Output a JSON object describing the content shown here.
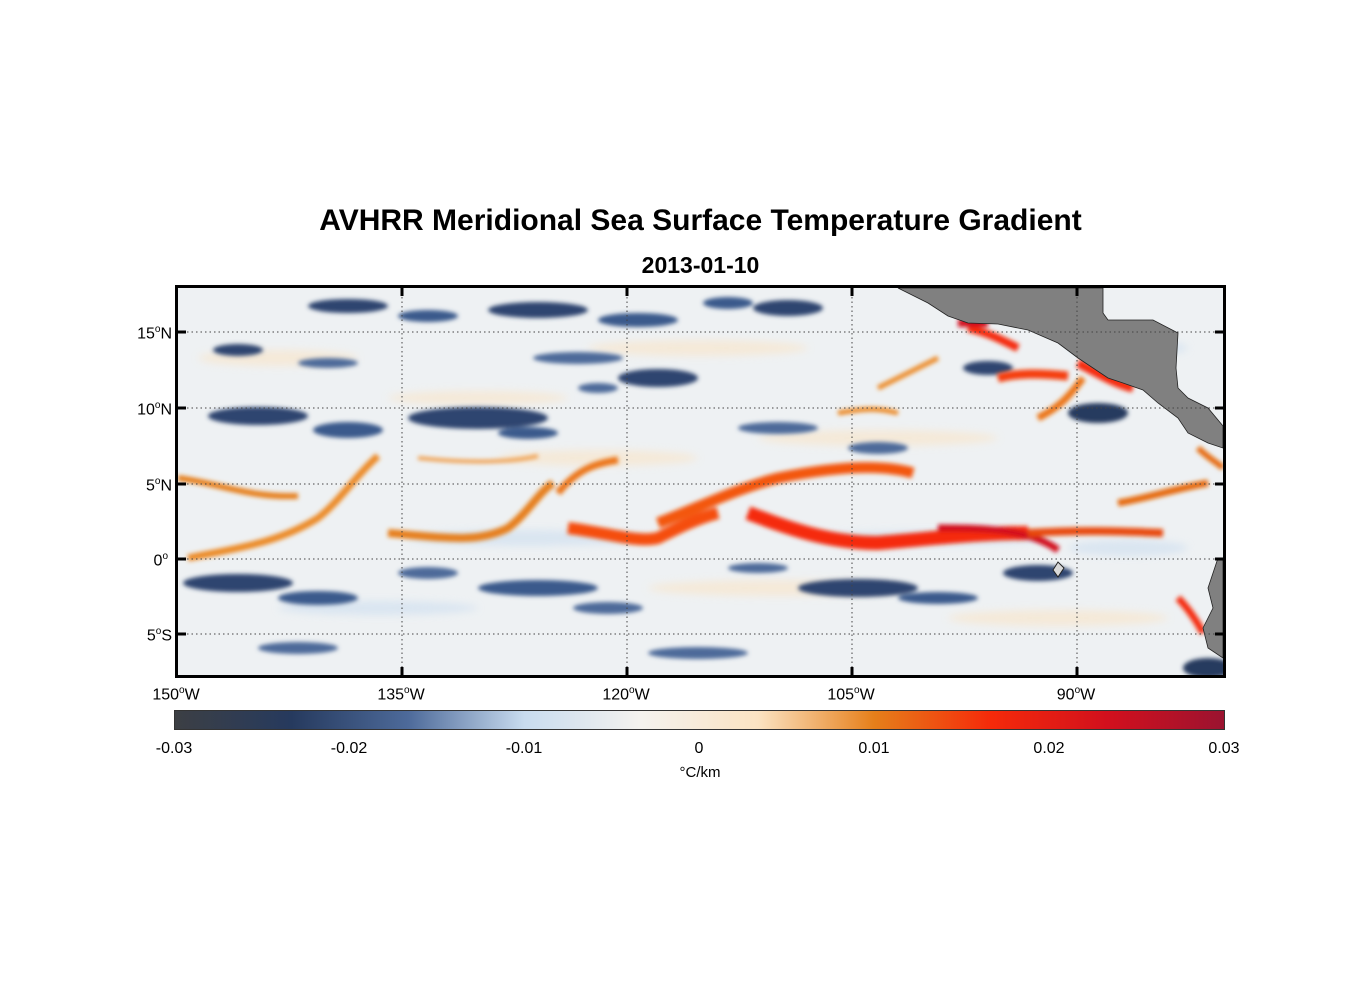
{
  "title": "AVHRR Meridional Sea Surface Temperature Gradient",
  "subtitle": "2013-01-10",
  "y_labels": [
    {
      "deg": "15",
      "hem": "N"
    },
    {
      "deg": "10",
      "hem": "N"
    },
    {
      "deg": "5",
      "hem": "N"
    },
    {
      "deg": "0",
      "hem": ""
    },
    {
      "deg": "5",
      "hem": "S"
    }
  ],
  "x_labels": [
    {
      "deg": "150",
      "hem": "W"
    },
    {
      "deg": "135",
      "hem": "W"
    },
    {
      "deg": "120",
      "hem": "W"
    },
    {
      "deg": "105",
      "hem": "W"
    },
    {
      "deg": "90",
      "hem": "W"
    }
  ],
  "colorbar": {
    "ticks": [
      "-0.03",
      "-0.02",
      "-0.01",
      "0",
      "0.01",
      "0.02",
      "0.03"
    ],
    "unit": "°C/km",
    "colors": [
      "#3c3f44",
      "#263a5e",
      "#4d6a9a",
      "#c9dcef",
      "#f4f2ee",
      "#fbe3c2",
      "#e67f1a",
      "#f52a0a",
      "#d2101d",
      "#9b1330"
    ]
  },
  "chart_data": {
    "type": "heatmap",
    "title": "AVHRR Meridional Sea Surface Temperature Gradient",
    "subtitle": "2013-01-10",
    "variable": "meridional SST gradient",
    "units": "°C/km",
    "clim": [
      -0.03,
      0.03
    ],
    "lon_range": [
      -150,
      -80
    ],
    "lat_range": [
      -8,
      18
    ],
    "lon_ticks": [
      -150,
      -135,
      -120,
      -105,
      -90
    ],
    "lat_ticks": [
      15,
      10,
      5,
      0,
      -5
    ],
    "grid": "dotted",
    "land_color": "#808080"
  }
}
